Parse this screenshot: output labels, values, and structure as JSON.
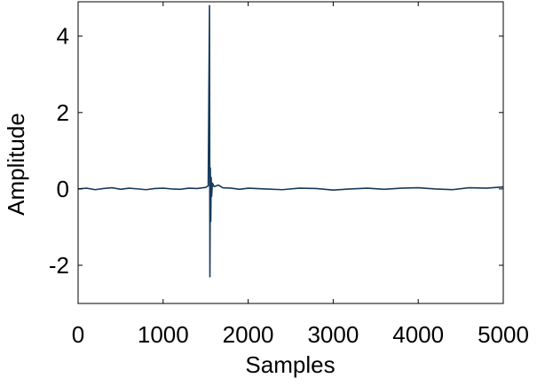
{
  "chart_data": {
    "type": "line",
    "title": "",
    "xlabel": "Samples",
    "ylabel": "Amplitude",
    "xlim": [
      0,
      5000
    ],
    "ylim": [
      -3,
      4.9
    ],
    "xticks": [
      0,
      1000,
      2000,
      3000,
      4000,
      5000
    ],
    "xtick_labels": [
      "0",
      "1000",
      "2000",
      "3000",
      "4000",
      "5000"
    ],
    "yticks": [
      -2,
      0,
      2,
      4
    ],
    "ytick_labels": [
      "-2",
      "0",
      "2",
      "4"
    ],
    "grid": false,
    "line_color": "#163a5c",
    "series": [
      {
        "name": "",
        "x": [
          0,
          100,
          200,
          300,
          400,
          500,
          600,
          700,
          800,
          900,
          1000,
          1100,
          1200,
          1300,
          1400,
          1500,
          1530,
          1545,
          1550,
          1555,
          1560,
          1565,
          1570,
          1580,
          1600,
          1650,
          1700,
          1800,
          1900,
          2000,
          2200,
          2400,
          2600,
          2800,
          3000,
          3200,
          3400,
          3600,
          3800,
          4000,
          4200,
          4400,
          4600,
          4800,
          5000
        ],
        "values": [
          0.0,
          0.02,
          -0.02,
          0.01,
          0.03,
          -0.01,
          0.02,
          0.0,
          -0.02,
          0.01,
          0.02,
          0.0,
          -0.01,
          0.02,
          0.01,
          0.04,
          0.08,
          4.8,
          -2.3,
          0.55,
          -0.85,
          0.3,
          -0.2,
          0.15,
          0.06,
          0.1,
          0.03,
          0.02,
          -0.01,
          0.02,
          0.0,
          -0.02,
          0.02,
          0.01,
          -0.03,
          0.0,
          0.02,
          -0.01,
          0.02,
          0.03,
          0.0,
          -0.02,
          0.03,
          0.02,
          0.05
        ]
      }
    ]
  }
}
